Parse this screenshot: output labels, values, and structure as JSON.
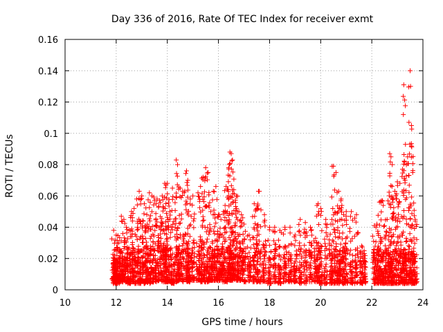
{
  "chart_data": {
    "type": "scatter",
    "title": "Day 336 of 2016, Rate Of TEC Index for receiver exmt",
    "xlabel": "GPS time / hours",
    "ylabel": "ROTI / TECUs",
    "xlim": [
      10,
      24
    ],
    "ylim": [
      0,
      0.16
    ],
    "xticks": [
      10,
      12,
      14,
      16,
      18,
      20,
      22,
      24
    ],
    "yticks": [
      0,
      0.02,
      0.04,
      0.06,
      0.08,
      0.1,
      0.12,
      0.14,
      0.16
    ],
    "xtick_labels": [
      "10",
      "12",
      "14",
      "16",
      "18",
      "20",
      "22",
      "24"
    ],
    "ytick_labels": [
      "0",
      "0.02",
      "0.04",
      "0.06",
      "0.08",
      "0.1",
      "0.12",
      "0.14",
      "0.16"
    ],
    "grid": true,
    "marker": "+",
    "marker_color": "#ff0000",
    "series": [
      {
        "name": "ROTI",
        "color": "#ff0000",
        "x": [
          11.9,
          11.95,
          12.0,
          12.05,
          12.1,
          12.2,
          12.3,
          12.4,
          12.5,
          12.6,
          12.7,
          12.8,
          12.9,
          13.0,
          13.1,
          13.2,
          13.3,
          13.4,
          13.5,
          13.6,
          13.7,
          13.8,
          13.9,
          13.95,
          14.0,
          14.1,
          14.2,
          14.35,
          14.4,
          14.5,
          14.6,
          14.75,
          14.8,
          14.9,
          15.0,
          15.2,
          15.3,
          15.4,
          15.5,
          15.6,
          15.7,
          15.8,
          15.9,
          16.0,
          16.1,
          16.2,
          16.3,
          16.4,
          16.45,
          16.5,
          16.55,
          16.6,
          16.7,
          16.8,
          16.9,
          17.0,
          17.2,
          17.4,
          17.5,
          17.6,
          17.8,
          18.0,
          18.2,
          18.4,
          18.6,
          18.8,
          19.0,
          19.2,
          19.4,
          19.6,
          19.8,
          19.9,
          20.0,
          20.2,
          20.4,
          20.5,
          20.6,
          20.7,
          20.8,
          20.9,
          21.0,
          21.2,
          21.4,
          21.6,
          21.7,
          22.1,
          22.2,
          22.3,
          22.4,
          22.5,
          22.6,
          22.7,
          22.75,
          22.8,
          22.9,
          23.0,
          23.1,
          23.2,
          23.25,
          23.3,
          23.4,
          23.5,
          23.55,
          23.6,
          23.7
        ],
        "y": [
          0.038,
          0.02,
          0.035,
          0.01,
          0.03,
          0.047,
          0.045,
          0.04,
          0.038,
          0.05,
          0.052,
          0.058,
          0.063,
          0.06,
          0.055,
          0.048,
          0.062,
          0.06,
          0.057,
          0.058,
          0.057,
          0.06,
          0.068,
          0.067,
          0.068,
          0.05,
          0.065,
          0.083,
          0.08,
          0.065,
          0.063,
          0.076,
          0.07,
          0.058,
          0.06,
          0.062,
          0.066,
          0.072,
          0.078,
          0.075,
          0.05,
          0.063,
          0.066,
          0.048,
          0.045,
          0.05,
          0.066,
          0.078,
          0.088,
          0.087,
          0.083,
          0.064,
          0.06,
          0.05,
          0.048,
          0.042,
          0.035,
          0.055,
          0.052,
          0.063,
          0.048,
          0.04,
          0.04,
          0.038,
          0.04,
          0.04,
          0.035,
          0.045,
          0.043,
          0.04,
          0.033,
          0.055,
          0.052,
          0.045,
          0.042,
          0.079,
          0.075,
          0.063,
          0.058,
          0.048,
          0.05,
          0.05,
          0.048,
          0.028,
          0.025,
          0.041,
          0.042,
          0.056,
          0.057,
          0.041,
          0.045,
          0.087,
          0.085,
          0.08,
          0.063,
          0.069,
          0.068,
          0.077,
          0.131,
          0.07,
          0.085,
          0.14,
          0.105,
          0.075,
          0.045
        ],
        "y_low": [
          0.005,
          0.004,
          0.005,
          0.004,
          0.006,
          0.005,
          0.005,
          0.005,
          0.004,
          0.005,
          0.005,
          0.004,
          0.004,
          0.005,
          0.004,
          0.005,
          0.004,
          0.005,
          0.005,
          0.005,
          0.006,
          0.005,
          0.005,
          0.005,
          0.005,
          0.005,
          0.004,
          0.005,
          0.005,
          0.006,
          0.005,
          0.005,
          0.005,
          0.005,
          0.006,
          0.006,
          0.005,
          0.006,
          0.005,
          0.005,
          0.006,
          0.006,
          0.006,
          0.006,
          0.006,
          0.005,
          0.005,
          0.006,
          0.006,
          0.006,
          0.007,
          0.007,
          0.006,
          0.006,
          0.006,
          0.005,
          0.005,
          0.005,
          0.005,
          0.005,
          0.005,
          0.004,
          0.005,
          0.004,
          0.005,
          0.005,
          0.005,
          0.004,
          0.004,
          0.005,
          0.005,
          0.005,
          0.004,
          0.004,
          0.004,
          0.004,
          0.004,
          0.004,
          0.004,
          0.004,
          0.004,
          0.004,
          0.004,
          0.004,
          0.004,
          0.004,
          0.004,
          0.004,
          0.004,
          0.004,
          0.004,
          0.004,
          0.004,
          0.004,
          0.004,
          0.004,
          0.004,
          0.004,
          0.004,
          0.004,
          0.004,
          0.004,
          0.004,
          0.004,
          0.004
        ]
      }
    ]
  }
}
